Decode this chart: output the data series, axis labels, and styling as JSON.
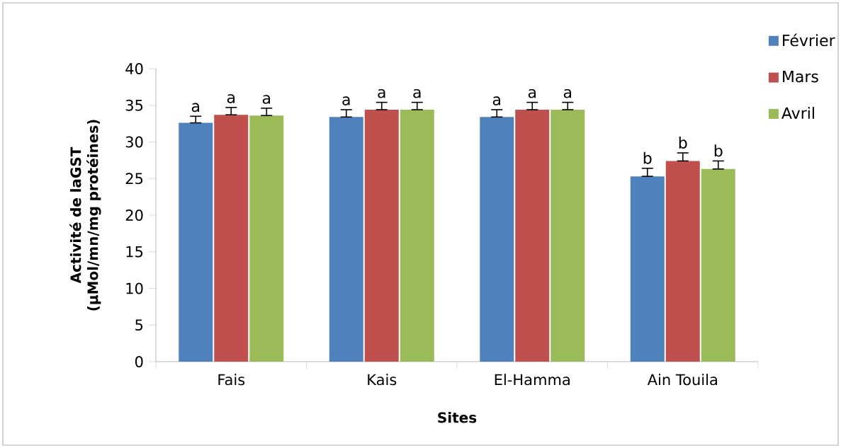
{
  "chart_data": {
    "type": "bar",
    "xlabel": "Sites",
    "ylabel": "Activité de laGST (µMol/mn/mg protéines)",
    "categories": [
      "Fais",
      "Kais",
      "El-Hamma",
      "Ain Touila"
    ],
    "series": [
      {
        "name": "Février",
        "color": "#4f81bd",
        "values": [
          32.6,
          33.4,
          33.4,
          25.3
        ],
        "errors": [
          [
            32.6,
            33.5
          ],
          [
            33.4,
            34.4
          ],
          [
            33.4,
            34.4
          ],
          [
            25.3,
            26.4
          ]
        ],
        "value_labels": [
          "a",
          "a",
          "a",
          "b"
        ]
      },
      {
        "name": "Mars",
        "color": "#c0504d",
        "values": [
          33.7,
          34.4,
          34.4,
          27.4
        ],
        "errors": [
          [
            33.7,
            34.7
          ],
          [
            34.4,
            35.4
          ],
          [
            34.4,
            35.4
          ],
          [
            27.4,
            28.5
          ]
        ],
        "value_labels": [
          "a",
          "a",
          "a",
          "b"
        ]
      },
      {
        "name": "Avril",
        "color": "#9bbb59",
        "values": [
          33.6,
          34.4,
          34.4,
          26.3
        ],
        "errors": [
          [
            33.6,
            34.6
          ],
          [
            34.4,
            35.4
          ],
          [
            34.4,
            35.4
          ],
          [
            26.3,
            27.4
          ]
        ],
        "value_labels": [
          "a",
          "a",
          "a",
          "b"
        ]
      }
    ],
    "ylim": [
      0,
      40
    ],
    "yticks": [
      0,
      5,
      10,
      15,
      20,
      25,
      30,
      35,
      40
    ],
    "grid": false,
    "legend": "top right"
  }
}
